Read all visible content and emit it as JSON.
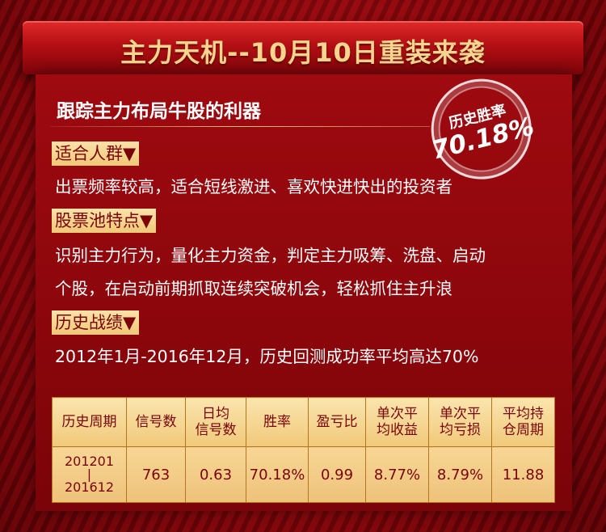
{
  "banner": {
    "title": "主力天机--10月10日重装来袭"
  },
  "subtitle": "跟踪主力布局牛股的利器",
  "stamp": {
    "label": "历史胜率",
    "value": "70.18%"
  },
  "sections": [
    {
      "tag": "适合人群▼",
      "lines": [
        "出票频率较高，适合短线激进、喜欢快进快出的投资者"
      ]
    },
    {
      "tag": "股票池特点▼",
      "lines": [
        "识别主力行为，量化主力资金，判定主力吸筹、洗盘、启动",
        "个股，在启动前期抓取连续突破机会，轻松抓住主升浪"
      ]
    },
    {
      "tag": "历史战绩▼",
      "lines": [
        "2012年1月-2016年12月，历史回测成功率平均高达70%"
      ]
    }
  ],
  "table": {
    "headers": [
      [
        "历史周期"
      ],
      [
        "信号数"
      ],
      [
        "日均",
        "信号数"
      ],
      [
        "胜率"
      ],
      [
        "盈亏比"
      ],
      [
        "单次平",
        "均收益"
      ],
      [
        "单次平",
        "均亏损"
      ],
      [
        "平均持",
        "仓周期"
      ]
    ],
    "row": {
      "period": [
        "201201",
        "|",
        "201612"
      ],
      "signals": "763",
      "daily_signals": "0.63",
      "win_rate": "70.18%",
      "profit_loss_ratio": "0.99",
      "avg_gain": "8.77%",
      "avg_loss": "8.79%",
      "avg_holding": "11.88"
    }
  }
}
